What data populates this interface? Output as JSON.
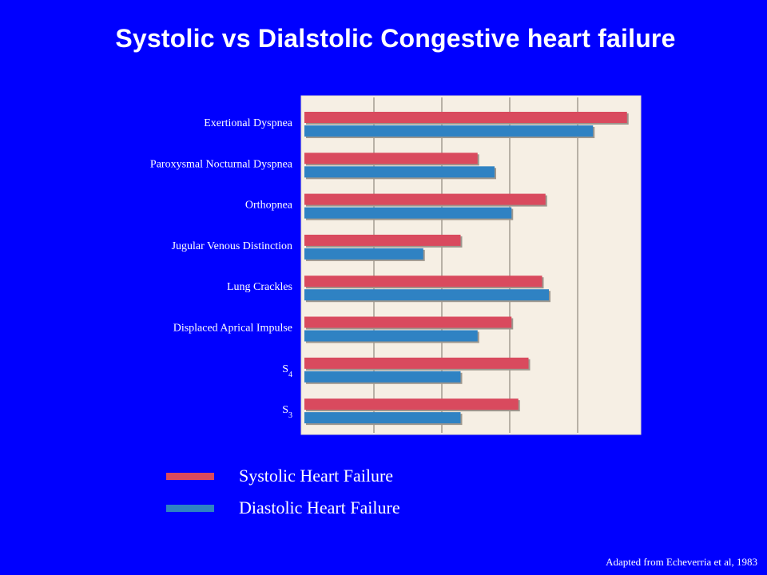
{
  "title": "Systolic vs Dialstolic Congestive heart failure",
  "source": "Adapted from Echeverria et al, 1983",
  "colors": {
    "background": "#0000ff",
    "plot": "#f6efe4",
    "systolic": "#d94a5e",
    "diastolic": "#2f82c3"
  },
  "legend": [
    {
      "label": "Systolic Heart Failure",
      "color": "#d94a5e"
    },
    {
      "label": "Diastolic Heart Failure",
      "color": "#2f82c3"
    }
  ],
  "chart_data": {
    "type": "bar",
    "orientation": "horizontal",
    "categories": [
      {
        "label": "Exertional Dyspnea"
      },
      {
        "label": "Paroxysmal Nocturnal Dyspnea"
      },
      {
        "label": "Orthopnea"
      },
      {
        "label": "Jugular Venous Distinction"
      },
      {
        "label": "Lung Crackles"
      },
      {
        "label": "Displaced Aprical Impulse"
      },
      {
        "label": "S",
        "sub": "4"
      },
      {
        "label": "S",
        "sub": "3"
      }
    ],
    "series": [
      {
        "name": "Systolic Heart Failure",
        "values": [
          95,
          51,
          71,
          46,
          70,
          61,
          66,
          63
        ]
      },
      {
        "name": "Diastolic Heart Failure",
        "values": [
          85,
          56,
          61,
          35,
          72,
          51,
          46,
          46
        ]
      }
    ],
    "xlim": [
      0,
      100
    ],
    "grid": true,
    "legend_position": "bottom"
  }
}
